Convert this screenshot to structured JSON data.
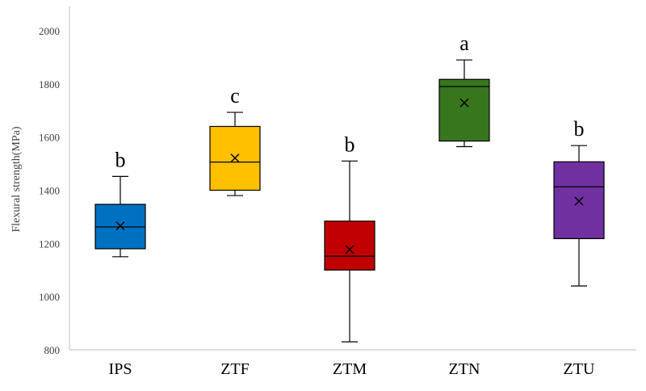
{
  "chart_data": {
    "type": "boxplot",
    "ylabel": "Flexural strength(MPa)",
    "ylim": [
      800,
      2000
    ],
    "yticks": [
      800,
      1000,
      1200,
      1400,
      1600,
      1800,
      2000
    ],
    "categories": [
      "IPS",
      "ZTF",
      "ZTM",
      "ZTN",
      "ZTU"
    ],
    "boxes": [
      {
        "category": "IPS",
        "min": 1150,
        "q1": 1180,
        "median": 1262,
        "q3": 1347,
        "max": 1452,
        "mean": 1266,
        "group": "b",
        "color": "#0070c0"
      },
      {
        "category": "ZTF",
        "min": 1380,
        "q1": 1400,
        "median": 1506,
        "q3": 1640,
        "max": 1693,
        "mean": 1521,
        "group": "c",
        "color": "#ffc000"
      },
      {
        "category": "ZTM",
        "min": 830,
        "q1": 1100,
        "median": 1152,
        "q3": 1284,
        "max": 1510,
        "mean": 1177,
        "group": "b",
        "color": "#c00000"
      },
      {
        "category": "ZTN",
        "min": 1564,
        "q1": 1585,
        "median": 1790,
        "q3": 1817,
        "max": 1890,
        "mean": 1729,
        "group": "a",
        "color": "#38761d"
      },
      {
        "category": "ZTU",
        "min": 1040,
        "q1": 1218,
        "median": 1413,
        "q3": 1507,
        "max": 1568,
        "mean": 1359,
        "group": "b",
        "color": "#7030a0"
      }
    ],
    "grid": false,
    "legend": "none"
  }
}
